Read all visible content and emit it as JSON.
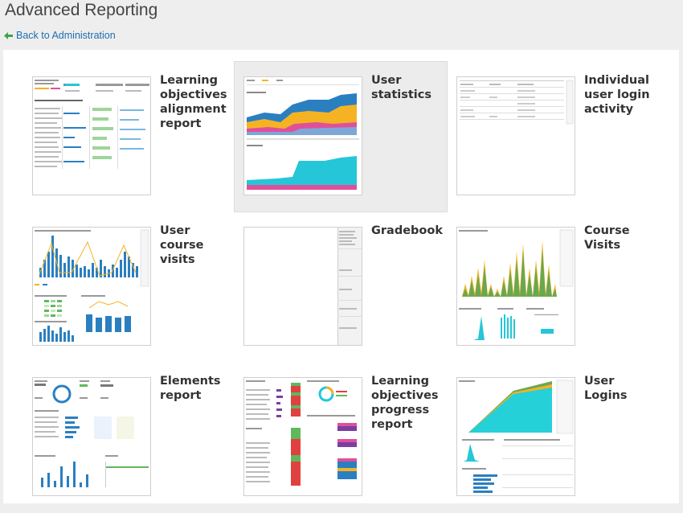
{
  "header": {
    "title": "Advanced Reporting",
    "back_label": "Back to Administration"
  },
  "colors": {
    "link": "#1a6fb0",
    "back_arrow": "#3aa64a",
    "accent_blue": "#2a7fc1",
    "accent_orange": "#f5b324",
    "accent_teal": "#25c6d8",
    "accent_pink": "#e0509a"
  },
  "reports": [
    {
      "label": "Learning objectives alignment report",
      "icon": "objectives-alignment-thumbnail"
    },
    {
      "label": "User statistics",
      "icon": "user-statistics-thumbnail"
    },
    {
      "label": "Individual user login activity",
      "icon": "login-activity-thumbnail"
    },
    {
      "label": "User course visits",
      "icon": "course-visits-chart-thumbnail"
    },
    {
      "label": "Gradebook",
      "icon": "gradebook-thumbnail"
    },
    {
      "label": "Course Visits",
      "icon": "course-visits-thumbnail"
    },
    {
      "label": "Elements report",
      "icon": "elements-report-thumbnail"
    },
    {
      "label": "Learning objectives progress report",
      "icon": "objectives-progress-thumbnail"
    },
    {
      "label": "User Logins",
      "icon": "user-logins-thumbnail"
    }
  ]
}
